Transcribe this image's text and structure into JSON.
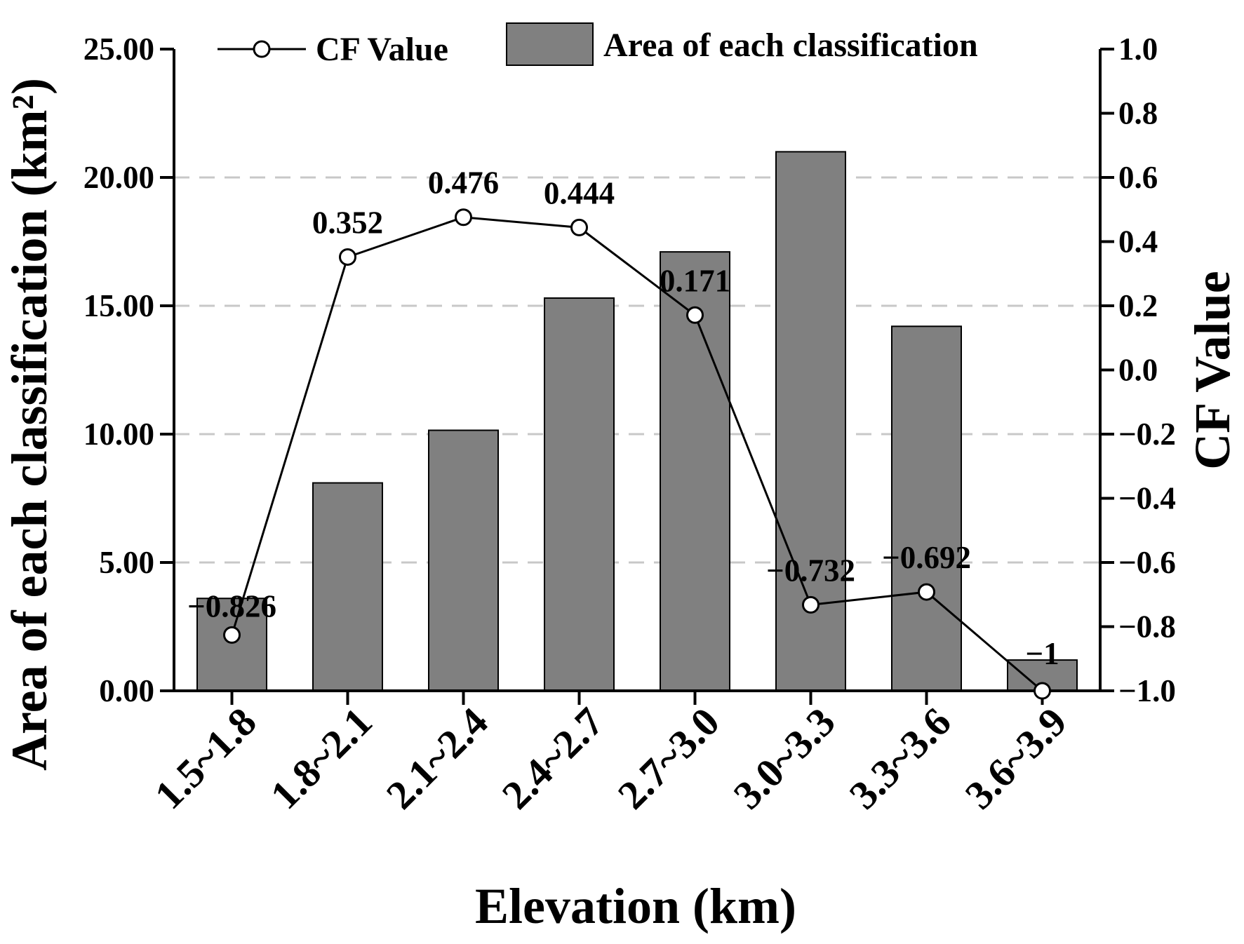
{
  "chart_data": {
    "type": "bar",
    "categories": [
      "1.5~1.8",
      "1.8~2.1",
      "2.1~2.4",
      "2.4~2.7",
      "2.7~3.0",
      "3.0~3.3",
      "3.3~3.6",
      "3.6~3.9"
    ],
    "series": [
      {
        "name": "Area of each classification",
        "type": "bar",
        "axis": "left",
        "values": [
          3.6,
          8.1,
          10.15,
          15.3,
          17.1,
          21.0,
          14.2,
          1.2
        ]
      },
      {
        "name": "CF Value",
        "type": "line",
        "axis": "right",
        "values": [
          -0.826,
          0.352,
          0.476,
          0.444,
          0.171,
          -0.732,
          -0.692,
          -1
        ],
        "labels": [
          "−0.826",
          "0.352",
          "0.476",
          "0.444",
          "0.171",
          "−0.732",
          "−0.692",
          "−1"
        ]
      }
    ],
    "xlabel": "Elevation (km)",
    "ylabel_left": "Area of each classification (km²)",
    "ylabel_right": "CF Value",
    "ylim_left": [
      0,
      25
    ],
    "ylim_right": [
      -1.0,
      1.0
    ],
    "yticks_left": [
      "0.00",
      "5.00",
      "10.00",
      "15.00",
      "20.00",
      "25.00"
    ],
    "yticks_right": [
      "−1.0",
      "−0.8",
      "−0.6",
      "−0.4",
      "−0.2",
      "0.0",
      "0.2",
      "0.4",
      "0.6",
      "0.8",
      "1.0"
    ],
    "grid": "horizontal dashed",
    "legend": {
      "position": "top",
      "entries": [
        "CF Value",
        "Area of each classification"
      ]
    },
    "colors": {
      "bar_fill": "#808080",
      "bar_edge": "#000000",
      "line": "#000000",
      "marker_fill": "#ffffff",
      "grid": "#c8c8c8"
    }
  }
}
